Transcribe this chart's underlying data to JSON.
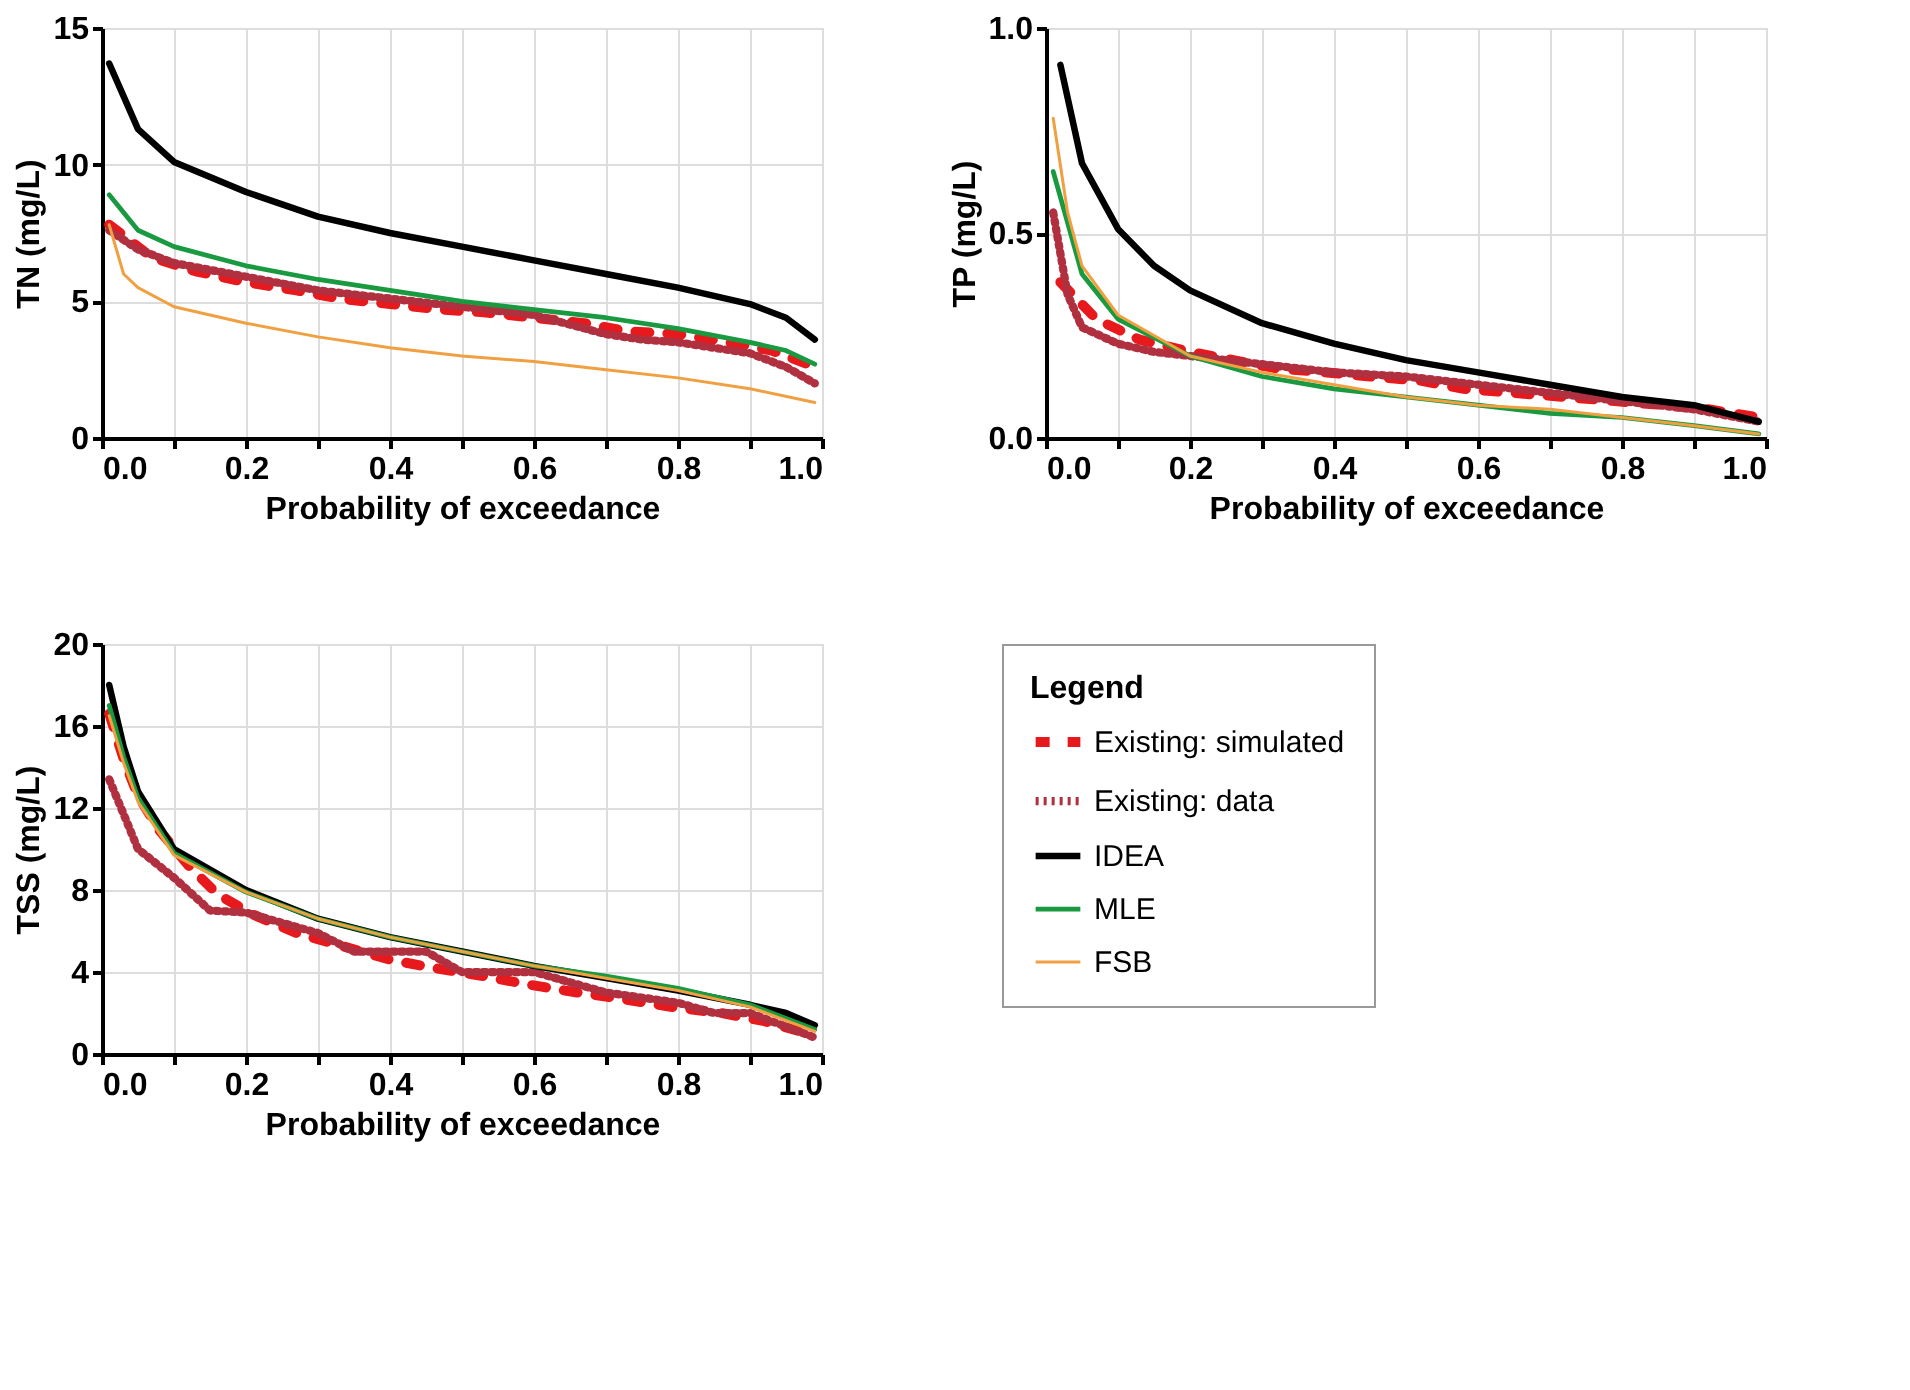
{
  "chart_data": [
    {
      "type": "line",
      "xlabel": "Probability of exceedance",
      "ylabel": "TN (mg/L)",
      "xlim": [
        0,
        1
      ],
      "ylim": [
        0,
        15
      ],
      "xticks": [
        {
          "value": 0,
          "label": "0.0"
        },
        {
          "value": 0.1,
          "label": null
        },
        {
          "value": 0.2,
          "label": "0.2"
        },
        {
          "value": 0.3,
          "label": null
        },
        {
          "value": 0.4,
          "label": "0.4"
        },
        {
          "value": 0.5,
          "label": null
        },
        {
          "value": 0.6,
          "label": "0.6"
        },
        {
          "value": 0.7,
          "label": null
        },
        {
          "value": 0.8,
          "label": "0.8"
        },
        {
          "value": 0.9,
          "label": null
        },
        {
          "value": 1,
          "label": "1.0"
        }
      ],
      "yticks": [
        0,
        5,
        10,
        15
      ],
      "grid": true,
      "legend": "bottom right",
      "legend_title": "Legend",
      "marker": "none",
      "series": [
        {
          "name": "Existing: simulated",
          "color": "#e8191c",
          "line_style": "dashed",
          "x": [
            0.01,
            0.07,
            0.13,
            0.2,
            0.27,
            0.33,
            0.4,
            0.47,
            0.53,
            0.6,
            0.67,
            0.73,
            0.8,
            0.87,
            0.93,
            0.99
          ],
          "values": [
            7.8,
            6.6,
            6.1,
            5.7,
            5.4,
            5.1,
            4.9,
            4.7,
            4.6,
            4.4,
            4.2,
            3.9,
            3.8,
            3.5,
            3.2,
            2.6
          ]
        },
        {
          "name": "Existing: data",
          "color": "#b03040",
          "line_style": "dotted",
          "x": [
            0.01,
            0.05,
            0.1,
            0.2,
            0.3,
            0.4,
            0.5,
            0.6,
            0.7,
            0.75,
            0.8,
            0.9,
            0.95,
            0.99
          ],
          "values": [
            7.6,
            6.9,
            6.4,
            5.9,
            5.4,
            5.1,
            4.8,
            4.5,
            3.8,
            3.6,
            3.5,
            3.1,
            2.6,
            2.0
          ]
        },
        {
          "name": "IDEA",
          "color": "#000000",
          "line_style": "solid",
          "x": [
            0.01,
            0.05,
            0.1,
            0.2,
            0.3,
            0.4,
            0.5,
            0.6,
            0.7,
            0.8,
            0.9,
            0.95,
            0.99
          ],
          "values": [
            13.7,
            11.3,
            10.1,
            9.0,
            8.1,
            7.5,
            7.0,
            6.5,
            6.0,
            5.5,
            4.9,
            4.4,
            3.6
          ]
        },
        {
          "name": "MLE",
          "color": "#1a9a40",
          "line_style": "solid",
          "x": [
            0.01,
            0.05,
            0.1,
            0.2,
            0.3,
            0.4,
            0.5,
            0.6,
            0.7,
            0.8,
            0.9,
            0.95,
            0.99
          ],
          "values": [
            8.9,
            7.6,
            7.0,
            6.3,
            5.8,
            5.4,
            5.0,
            4.7,
            4.4,
            4.0,
            3.5,
            3.2,
            2.7
          ]
        },
        {
          "name": "FSB",
          "color": "#f0a040",
          "line_style": "solid",
          "x": [
            0.01,
            0.03,
            0.05,
            0.1,
            0.2,
            0.3,
            0.4,
            0.5,
            0.6,
            0.7,
            0.8,
            0.9,
            0.99
          ],
          "values": [
            7.8,
            6.0,
            5.5,
            4.8,
            4.2,
            3.7,
            3.3,
            3.0,
            2.8,
            2.5,
            2.2,
            1.8,
            1.3
          ]
        }
      ]
    },
    {
      "type": "line",
      "xlabel": "Probability of exceedance",
      "ylabel": "TP (mg/L)",
      "xlim": [
        0,
        1
      ],
      "ylim": [
        0,
        1
      ],
      "xticks": [
        {
          "value": 0,
          "label": "0.0"
        },
        {
          "value": 0.1,
          "label": null
        },
        {
          "value": 0.2,
          "label": "0.2"
        },
        {
          "value": 0.3,
          "label": null
        },
        {
          "value": 0.4,
          "label": "0.4"
        },
        {
          "value": 0.5,
          "label": null
        },
        {
          "value": 0.6,
          "label": "0.6"
        },
        {
          "value": 0.7,
          "label": null
        },
        {
          "value": 0.8,
          "label": "0.8"
        },
        {
          "value": 0.9,
          "label": null
        },
        {
          "value": 1,
          "label": "1.0"
        }
      ],
      "yticks": [
        {
          "value": 0,
          "label": "0.0"
        },
        0.5,
        {
          "value": 1,
          "label": "1.0"
        }
      ],
      "grid": true,
      "marker": "none",
      "series": [
        {
          "color": "#e8191c",
          "line_style": "dashed",
          "x": [
            0.02,
            0.07,
            0.13,
            0.2,
            0.26,
            0.32,
            0.39,
            0.45,
            0.52,
            0.58,
            0.65,
            0.72,
            0.79,
            0.86,
            0.92,
            0.99
          ],
          "values": [
            0.38,
            0.29,
            0.24,
            0.21,
            0.19,
            0.17,
            0.16,
            0.15,
            0.14,
            0.12,
            0.11,
            0.1,
            0.09,
            0.08,
            0.07,
            0.05
          ]
        },
        {
          "color": "#b03040",
          "line_style": "dotted",
          "x": [
            0.01,
            0.03,
            0.05,
            0.1,
            0.15,
            0.2,
            0.3,
            0.4,
            0.5,
            0.6,
            0.7,
            0.8,
            0.9,
            0.99
          ],
          "values": [
            0.55,
            0.35,
            0.27,
            0.23,
            0.21,
            0.2,
            0.18,
            0.16,
            0.15,
            0.13,
            0.11,
            0.09,
            0.07,
            0.04
          ]
        },
        {
          "color": "#000000",
          "line_style": "solid",
          "x": [
            0.02,
            0.05,
            0.1,
            0.15,
            0.2,
            0.3,
            0.4,
            0.5,
            0.6,
            0.7,
            0.8,
            0.9,
            0.99
          ],
          "values": [
            0.91,
            0.67,
            0.51,
            0.42,
            0.36,
            0.28,
            0.23,
            0.19,
            0.16,
            0.13,
            0.1,
            0.08,
            0.04
          ]
        },
        {
          "color": "#1a9a40",
          "line_style": "solid",
          "x": [
            0.01,
            0.05,
            0.1,
            0.2,
            0.3,
            0.4,
            0.5,
            0.6,
            0.7,
            0.8,
            0.9,
            0.99
          ],
          "values": [
            0.65,
            0.4,
            0.29,
            0.2,
            0.15,
            0.12,
            0.1,
            0.08,
            0.06,
            0.05,
            0.03,
            0.01
          ]
        },
        {
          "color": "#f0a040",
          "line_style": "solid",
          "x": [
            0.01,
            0.03,
            0.05,
            0.1,
            0.2,
            0.3,
            0.4,
            0.5,
            0.6,
            0.7,
            0.8,
            0.9,
            0.99
          ],
          "values": [
            0.78,
            0.55,
            0.42,
            0.3,
            0.2,
            0.16,
            0.13,
            0.1,
            0.08,
            0.07,
            0.05,
            0.03,
            0.01
          ]
        }
      ]
    },
    {
      "type": "line",
      "xlabel": "Probability of exceedance",
      "ylabel": "TSS (mg/L)",
      "xlim": [
        0,
        1
      ],
      "ylim": [
        0,
        20
      ],
      "xticks": [
        {
          "value": 0,
          "label": "0.0"
        },
        {
          "value": 0.1,
          "label": null
        },
        {
          "value": 0.2,
          "label": "0.2"
        },
        {
          "value": 0.3,
          "label": null
        },
        {
          "value": 0.4,
          "label": "0.4"
        },
        {
          "value": 0.5,
          "label": null
        },
        {
          "value": 0.6,
          "label": "0.6"
        },
        {
          "value": 0.7,
          "label": null
        },
        {
          "value": 0.8,
          "label": "0.8"
        },
        {
          "value": 0.9,
          "label": null
        },
        {
          "value": 1,
          "label": "1.0"
        }
      ],
      "yticks": [
        0,
        4,
        8,
        12,
        16,
        20
      ],
      "grid": true,
      "marker": "none",
      "series": [
        {
          "color": "#e8191c",
          "line_style": "dashed",
          "x": [
            0.01,
            0.03,
            0.05,
            0.08,
            0.12,
            0.16,
            0.21,
            0.27,
            0.34,
            0.4,
            0.46,
            0.53,
            0.59,
            0.66,
            0.72,
            0.79,
            0.86,
            0.92,
            0.99
          ],
          "values": [
            16.6,
            14.4,
            12.6,
            10.9,
            9.2,
            7.8,
            6.8,
            5.9,
            5.2,
            4.6,
            4.2,
            3.8,
            3.4,
            3.0,
            2.7,
            2.3,
            2.0,
            1.6,
            0.9
          ]
        },
        {
          "color": "#b03040",
          "line_style": "dotted",
          "x": [
            0.01,
            0.05,
            0.1,
            0.15,
            0.2,
            0.3,
            0.35,
            0.4,
            0.45,
            0.5,
            0.6,
            0.7,
            0.8,
            0.85,
            0.9,
            0.99
          ],
          "values": [
            13.4,
            10.0,
            8.6,
            7.0,
            6.9,
            5.9,
            5.0,
            5.0,
            5.0,
            4.0,
            4.0,
            3.0,
            2.5,
            2.0,
            2.0,
            0.8
          ]
        },
        {
          "color": "#000000",
          "line_style": "solid",
          "x": [
            0.01,
            0.03,
            0.05,
            0.1,
            0.2,
            0.3,
            0.4,
            0.5,
            0.6,
            0.7,
            0.8,
            0.9,
            0.95,
            0.99
          ],
          "values": [
            18.0,
            15.0,
            12.8,
            10.0,
            8.0,
            6.6,
            5.7,
            5.0,
            4.3,
            3.7,
            3.1,
            2.4,
            2.0,
            1.4
          ]
        },
        {
          "color": "#1a9a40",
          "line_style": "solid",
          "x": [
            0.01,
            0.03,
            0.05,
            0.1,
            0.2,
            0.3,
            0.4,
            0.5,
            0.6,
            0.7,
            0.8,
            0.9,
            0.99
          ],
          "values": [
            17.0,
            14.5,
            12.5,
            9.8,
            7.9,
            6.6,
            5.7,
            5.0,
            4.3,
            3.8,
            3.2,
            2.4,
            1.2
          ]
        },
        {
          "color": "#f0a040",
          "line_style": "solid",
          "x": [
            0.01,
            0.03,
            0.05,
            0.1,
            0.2,
            0.3,
            0.4,
            0.5,
            0.6,
            0.7,
            0.8,
            0.9,
            0.99
          ],
          "values": [
            16.5,
            14.2,
            12.3,
            9.7,
            7.9,
            6.6,
            5.7,
            5.0,
            4.3,
            3.7,
            3.1,
            2.3,
            1.1
          ]
        }
      ]
    }
  ]
}
